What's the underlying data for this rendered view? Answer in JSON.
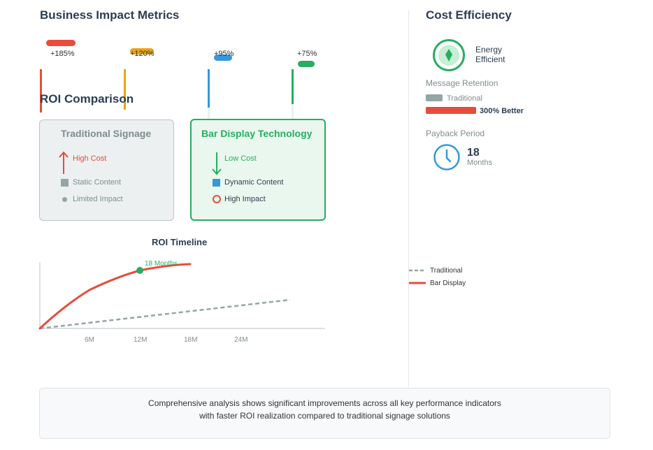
{
  "impact": {
    "title": "Business Impact Metrics",
    "metrics": [
      {
        "label": "+185%",
        "color": "#e74c3c"
      },
      {
        "label": "+120%",
        "color": "#e8a419"
      },
      {
        "label": "+95%",
        "color": "#3498db"
      },
      {
        "label": "+75%",
        "color": "#27ae60"
      }
    ]
  },
  "roi": {
    "title": "ROI Comparison",
    "traditional": {
      "title": "Traditional Signage",
      "rows": [
        "High Cost",
        "Static Content",
        "Limited Impact"
      ]
    },
    "bar": {
      "title": "Bar Display Technology",
      "rows": [
        "Low Cost",
        "Dynamic Content",
        "High Impact"
      ]
    }
  },
  "timeline": {
    "title": "ROI Timeline",
    "marker_label": "18 Months",
    "ticks": [
      "6M",
      "12M",
      "18M",
      "24M"
    ],
    "legend": {
      "traditional": "Traditional",
      "bar": "Bar Display"
    }
  },
  "cost": {
    "title": "Cost Efficiency",
    "energy": "Energy Efficient",
    "retention_title": "Message Retention",
    "traditional": "Traditional",
    "better": "300% Better",
    "payback_title": "Payback Period",
    "payback_value": "18",
    "payback_unit": "Months"
  },
  "footer": {
    "line1": "Comprehensive analysis shows significant improvements across all key performance indicators",
    "line2": "with faster ROI realization compared to traditional signage solutions"
  },
  "colors": {
    "red": "#e74c3c",
    "green": "#27ae60",
    "gray": "#95a5a6",
    "blue": "#3498db",
    "orange": "#e8a419"
  }
}
